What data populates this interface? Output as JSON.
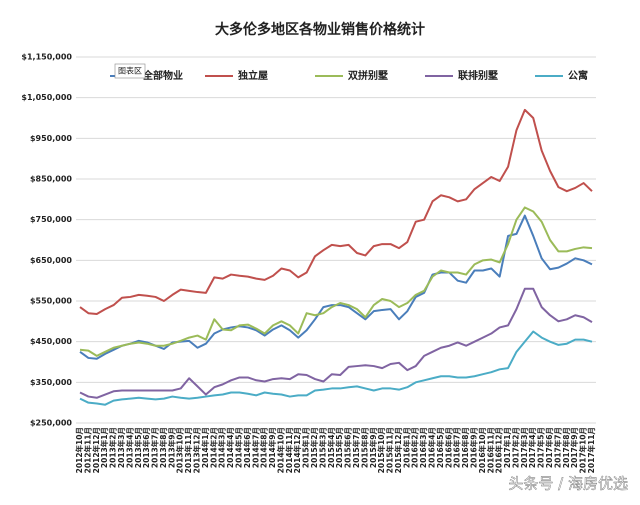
{
  "chart_data": {
    "type": "line",
    "title": "大多伦多地区各物业销售价格统计",
    "tooltip": "图表区",
    "watermark": "头条号 / 海房优选",
    "categories": [
      "2012年10月",
      "2012年11月",
      "2012年12月",
      "2013年1月",
      "2013年2月",
      "2013年3月",
      "2013年4月",
      "2013年5月",
      "2013年6月",
      "2013年7月",
      "2013年8月",
      "2013年9月",
      "2013年10月",
      "2013年11月",
      "2013年12月",
      "2014年1月",
      "2014年2月",
      "2014年3月",
      "2014年4月",
      "2014年5月",
      "2014年6月",
      "2014年7月",
      "2014年8月",
      "2014年9月",
      "2014年10月",
      "2014年11月",
      "2014年12月",
      "2015年1月",
      "2015年2月",
      "2015年3月",
      "2015年4月",
      "2015年5月",
      "2015年6月",
      "2015年7月",
      "2015年8月",
      "2015年9月",
      "2015年10月",
      "2015年11月",
      "2015年12月",
      "2016年1月",
      "2016年2月",
      "2016年3月",
      "2016年4月",
      "2016年5月",
      "2016年6月",
      "2016年7月",
      "2016年8月",
      "2016年9月",
      "2016年10月",
      "2016年11月",
      "2016年12月",
      "2017年1月",
      "2017年2月",
      "2017年3月",
      "2017年4月",
      "2017年5月",
      "2017年6月",
      "2017年7月",
      "2017年8月",
      "2017年9月",
      "2017年10月",
      "2017年11月"
    ],
    "series": [
      {
        "name": "全部物业",
        "color": "#4a7ebb",
        "values": [
          425000,
          410000,
          408000,
          420000,
          430000,
          440000,
          445000,
          452000,
          448000,
          440000,
          432000,
          448000,
          450000,
          452000,
          435000,
          445000,
          470000,
          480000,
          485000,
          488000,
          485000,
          478000,
          465000,
          480000,
          490000,
          478000,
          460000,
          478000,
          505000,
          535000,
          540000,
          540000,
          535000,
          520000,
          505000,
          525000,
          528000,
          530000,
          505000,
          525000,
          560000,
          570000,
          615000,
          620000,
          620000,
          600000,
          595000,
          625000,
          625000,
          630000,
          610000,
          710000,
          715000,
          760000,
          710000,
          655000,
          628000,
          632000,
          642000,
          655000,
          650000,
          640000
        ]
      },
      {
        "name": "独立屋",
        "color": "#c0504d",
        "values": [
          535000,
          520000,
          518000,
          530000,
          540000,
          558000,
          560000,
          565000,
          563000,
          560000,
          550000,
          565000,
          578000,
          575000,
          572000,
          570000,
          608000,
          605000,
          615000,
          612000,
          610000,
          605000,
          602000,
          612000,
          630000,
          625000,
          608000,
          620000,
          660000,
          675000,
          688000,
          685000,
          688000,
          668000,
          662000,
          685000,
          690000,
          690000,
          680000,
          695000,
          745000,
          750000,
          795000,
          810000,
          805000,
          795000,
          800000,
          825000,
          840000,
          855000,
          845000,
          880000,
          970000,
          1020000,
          1000000,
          920000,
          870000,
          830000,
          820000,
          828000,
          840000,
          820000
        ]
      },
      {
        "name": "双拼别墅",
        "color": "#9bbb59",
        "values": [
          430000,
          428000,
          415000,
          425000,
          435000,
          440000,
          445000,
          448000,
          445000,
          440000,
          440000,
          445000,
          452000,
          460000,
          465000,
          455000,
          505000,
          480000,
          478000,
          490000,
          492000,
          482000,
          470000,
          490000,
          500000,
          490000,
          470000,
          520000,
          515000,
          520000,
          535000,
          545000,
          540000,
          530000,
          510000,
          540000,
          555000,
          550000,
          535000,
          545000,
          565000,
          575000,
          610000,
          625000,
          620000,
          620000,
          615000,
          640000,
          650000,
          652000,
          645000,
          690000,
          750000,
          780000,
          770000,
          745000,
          700000,
          672000,
          672000,
          678000,
          682000,
          680000
        ]
      },
      {
        "name": "联排别墅",
        "color": "#8064a2",
        "values": [
          325000,
          315000,
          312000,
          320000,
          328000,
          330000,
          330000,
          330000,
          330000,
          330000,
          330000,
          330000,
          335000,
          360000,
          340000,
          320000,
          338000,
          345000,
          355000,
          362000,
          362000,
          355000,
          352000,
          358000,
          360000,
          358000,
          370000,
          368000,
          358000,
          352000,
          370000,
          368000,
          388000,
          390000,
          392000,
          390000,
          385000,
          395000,
          398000,
          380000,
          390000,
          415000,
          425000,
          435000,
          440000,
          448000,
          440000,
          450000,
          460000,
          470000,
          485000,
          490000,
          530000,
          580000,
          580000,
          535000,
          515000,
          500000,
          505000,
          515000,
          510000,
          498000
        ]
      },
      {
        "name": "公寓",
        "color": "#4bacc6",
        "values": [
          310000,
          300000,
          298000,
          295000,
          305000,
          308000,
          310000,
          312000,
          310000,
          308000,
          310000,
          315000,
          312000,
          310000,
          312000,
          315000,
          318000,
          320000,
          325000,
          325000,
          322000,
          318000,
          325000,
          322000,
          320000,
          315000,
          318000,
          318000,
          330000,
          332000,
          335000,
          335000,
          338000,
          340000,
          335000,
          330000,
          335000,
          335000,
          332000,
          338000,
          350000,
          355000,
          360000,
          365000,
          365000,
          362000,
          362000,
          365000,
          370000,
          375000,
          382000,
          385000,
          425000,
          450000,
          475000,
          460000,
          450000,
          442000,
          445000,
          455000,
          455000,
          450000
        ]
      }
    ],
    "ylim": [
      250000,
      1150000
    ],
    "yticks": [
      {
        "value": 250000,
        "label": "$250,000"
      },
      {
        "value": 350000,
        "label": "$350,000"
      },
      {
        "value": 450000,
        "label": "$450,000"
      },
      {
        "value": 550000,
        "label": "$550,000"
      },
      {
        "value": 650000,
        "label": "$650,000"
      },
      {
        "value": 750000,
        "label": "$750,000"
      },
      {
        "value": 850000,
        "label": "$850,000"
      },
      {
        "value": 950000,
        "label": "$950,000"
      },
      {
        "value": 1050000,
        "label": "$1,050,000"
      },
      {
        "value": 1150000,
        "label": "$1,150,000"
      }
    ],
    "grid": true
  }
}
